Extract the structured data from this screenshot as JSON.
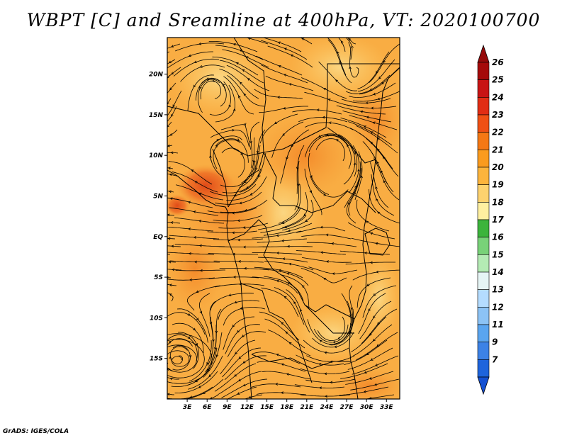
{
  "title": "WBPT [C] and Sreamline at 400hPa, VT: 2020100700",
  "credit": "GrADS: IGES/COLA",
  "map": {
    "lon_range": [
      0,
      35
    ],
    "lat_range": [
      -20,
      24.5
    ],
    "lat_ticks": [
      {
        "value": 20,
        "label": "20N"
      },
      {
        "value": 15,
        "label": "15N"
      },
      {
        "value": 10,
        "label": "10N"
      },
      {
        "value": 5,
        "label": "5N"
      },
      {
        "value": 0,
        "label": "EQ"
      },
      {
        "value": -5,
        "label": "5S"
      },
      {
        "value": -10,
        "label": "10S"
      },
      {
        "value": -15,
        "label": "15S"
      }
    ],
    "lon_ticks": [
      {
        "value": 3,
        "label": "3E"
      },
      {
        "value": 6,
        "label": "6E"
      },
      {
        "value": 9,
        "label": "9E"
      },
      {
        "value": 12,
        "label": "12E"
      },
      {
        "value": 15,
        "label": "15E"
      },
      {
        "value": 18,
        "label": "18E"
      },
      {
        "value": 21,
        "label": "21E"
      },
      {
        "value": 24,
        "label": "24E"
      },
      {
        "value": 27,
        "label": "27E"
      },
      {
        "value": 30,
        "label": "30E"
      },
      {
        "value": 33,
        "label": "33E"
      }
    ]
  },
  "colorbar": {
    "levels": [
      {
        "label": "26",
        "color": "#a50a0a"
      },
      {
        "label": "25",
        "color": "#c81414"
      },
      {
        "label": "24",
        "color": "#e12d14"
      },
      {
        "label": "23",
        "color": "#f05014"
      },
      {
        "label": "22",
        "color": "#f57814"
      },
      {
        "label": "21",
        "color": "#fa9b1e"
      },
      {
        "label": "20",
        "color": "#fcb43c"
      },
      {
        "label": "19",
        "color": "#fdd26e"
      },
      {
        "label": "18",
        "color": "#fff0a0"
      },
      {
        "label": "17",
        "color": "#3cb43c"
      },
      {
        "label": "16",
        "color": "#78d278"
      },
      {
        "label": "15",
        "color": "#b4ebb4"
      },
      {
        "label": "14",
        "color": "#e6f5f5"
      },
      {
        "label": "13",
        "color": "#b4dcff"
      },
      {
        "label": "12",
        "color": "#8cc3f5"
      },
      {
        "label": "11",
        "color": "#5aa5f0"
      },
      {
        "label": "9",
        "color": "#3c82e6"
      },
      {
        "label": "7",
        "color": "#1e64dc"
      }
    ],
    "top_arrow_color": "#960a0a",
    "bottom_arrow_color": "#1450d2"
  },
  "colors": {
    "map_base": "#f9ad43",
    "deep_orange": "#f59a35",
    "hot": "#e85a20",
    "pale": "#fbd37b",
    "streamline": "#000000"
  }
}
